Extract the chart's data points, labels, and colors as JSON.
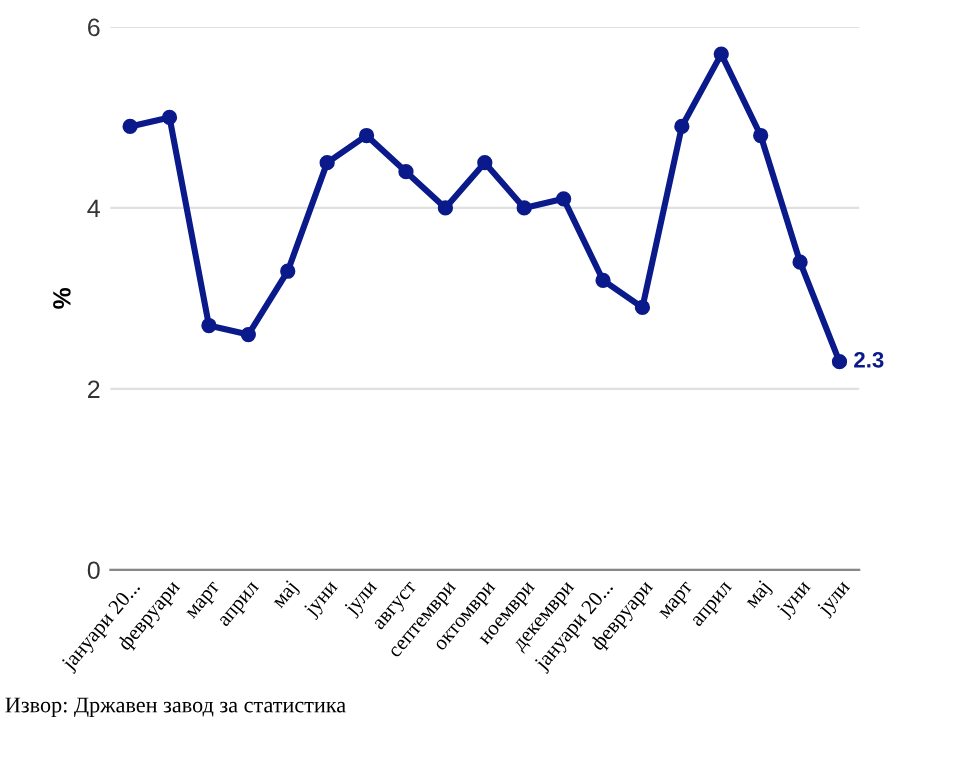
{
  "chart_data": {
    "type": "line",
    "ylabel": "%",
    "categories": [
      "јануари 20...",
      "февруари",
      "март",
      "април",
      "мај",
      "јуни",
      "јули",
      "август",
      "септември",
      "октомври",
      "ноември",
      "декември",
      "јануари 20...",
      "февруари",
      "март",
      "април",
      "мај",
      "јуни",
      "јули"
    ],
    "series": [
      {
        "color": "#0b1a8a",
        "values": [
          4.9,
          5.0,
          2.7,
          2.6,
          3.3,
          4.5,
          4.8,
          4.4,
          4.0,
          4.5,
          4.0,
          4.1,
          3.2,
          2.9,
          4.9,
          5.7,
          4.8,
          3.4,
          2.3
        ],
        "value_labels": [
          null,
          null,
          null,
          null,
          null,
          null,
          null,
          null,
          null,
          null,
          null,
          null,
          null,
          null,
          null,
          null,
          null,
          null,
          "2.3"
        ]
      }
    ],
    "ylim": [
      0,
      6
    ],
    "yticks": [
      0,
      2,
      4,
      6
    ],
    "grid": "y",
    "marker": "circle",
    "line_style": "solid",
    "legend": false,
    "annotations": [
      "Извор: Државен завод за статистика"
    ]
  }
}
